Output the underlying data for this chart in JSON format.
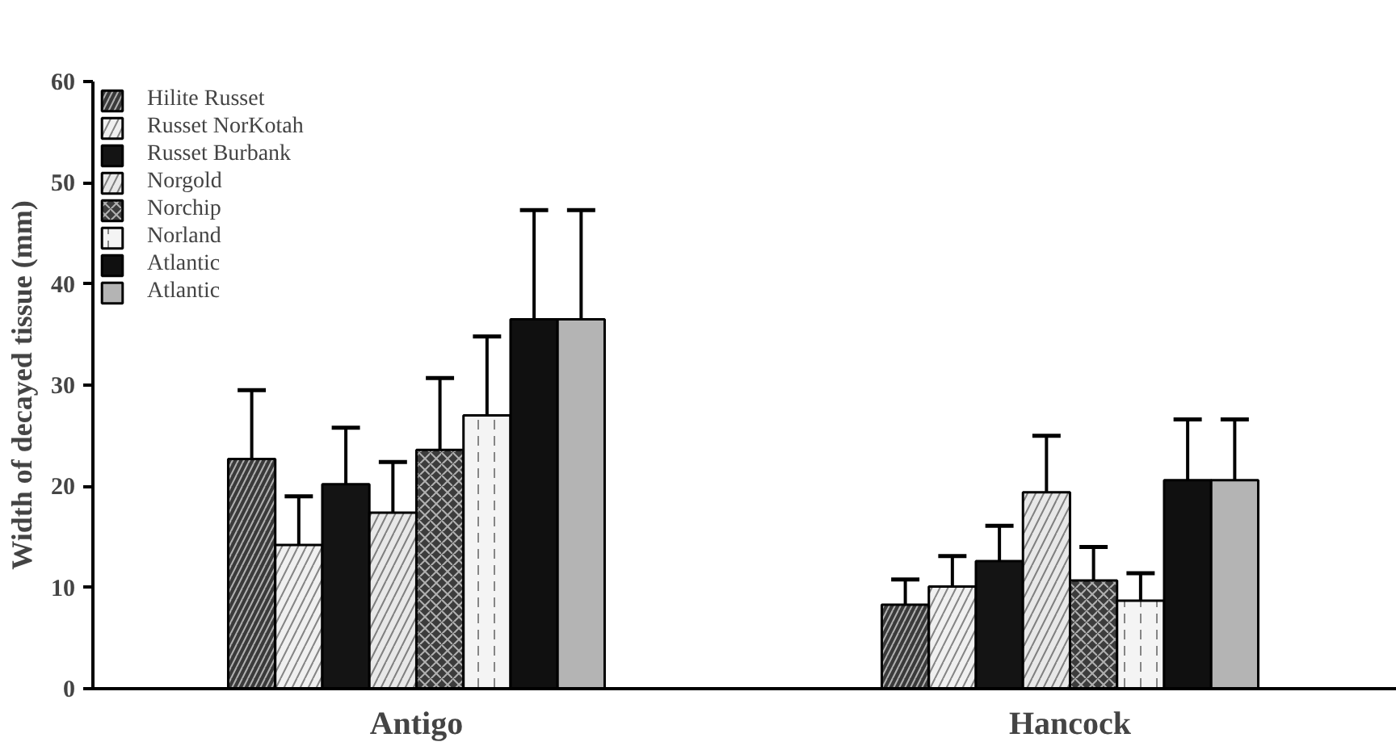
{
  "chart_data": {
    "type": "bar",
    "ylabel": "Width of decayed tissue (mm)",
    "categories": [
      "Antigo",
      "Hancock"
    ],
    "series": [
      {
        "name": "Hilite Russet",
        "color": "#3a3a3a",
        "values": [
          22.7,
          8.3
        ],
        "errors": [
          [
            22.7,
            29.5
          ],
          [
            8.3,
            10.8
          ]
        ]
      },
      {
        "name": "Russet NorKotah",
        "color": "#f0f0f0",
        "values": [
          14.2,
          10.1
        ],
        "errors": [
          [
            14.2,
            19.0
          ],
          [
            10.1,
            13.1
          ]
        ]
      },
      {
        "name": "Russet Burbank",
        "color": "#141414",
        "values": [
          20.2,
          12.6
        ],
        "errors": [
          [
            20.2,
            25.8
          ],
          [
            12.6,
            16.1
          ]
        ]
      },
      {
        "name": "Norgold",
        "color": "#e8e8e8",
        "values": [
          17.4,
          19.4
        ],
        "errors": [
          [
            17.4,
            22.4
          ],
          [
            19.4,
            25.0
          ]
        ]
      },
      {
        "name": "Norchip",
        "color": "#3c3c3c",
        "values": [
          23.6,
          10.7
        ],
        "errors": [
          [
            23.6,
            30.7
          ],
          [
            10.7,
            14.0
          ]
        ]
      },
      {
        "name": "Norland",
        "color": "#f4f4f4",
        "values": [
          27.0,
          8.7
        ],
        "errors": [
          [
            27.0,
            34.8
          ],
          [
            8.7,
            11.4
          ]
        ]
      },
      {
        "name": "Atlantic",
        "color": "#101010",
        "values": [
          36.5,
          20.6
        ],
        "errors": [
          [
            36.5,
            47.3
          ],
          [
            20.6,
            26.6
          ]
        ]
      },
      {
        "name": "Atlantic",
        "color": "#b4b4b4",
        "values": [
          36.5,
          20.6
        ],
        "errors": [
          [
            36.5,
            47.3
          ],
          [
            20.6,
            26.6
          ]
        ]
      }
    ],
    "ylim": [
      0,
      60
    ],
    "yticks": [
      0,
      10,
      20,
      30,
      40,
      50,
      60
    ],
    "grid": false,
    "legend": "top left"
  }
}
